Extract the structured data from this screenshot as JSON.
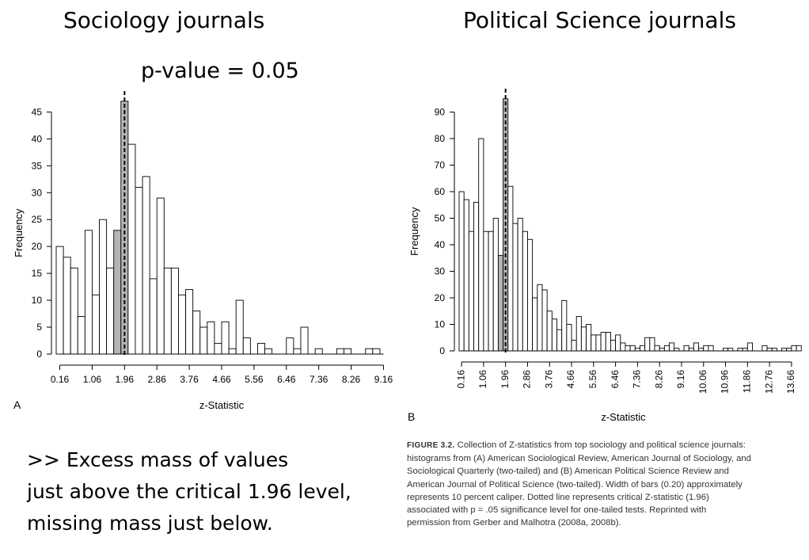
{
  "slide": {
    "left_title": "Sociology journals",
    "right_title": "Political Science journals",
    "pvalue_label": "p-value = 0.05",
    "note_lines": [
      ">> Excess mass of values",
      "just above the critical 1.96 level,",
      "missing mass just below."
    ]
  },
  "caption": {
    "label": "FIGURE 3.2.",
    "lines": [
      " Collection of Z-statistics from top sociology and political science journals:",
      "histograms from (A) American Sociological Review, American Journal of Sociology, and",
      "Sociological Quarterly (two-tailed) and (B) American Political Science Review and",
      "American Journal of Political Science (two-tailed). Width of bars (0.20) approximately",
      "represents 10 percent caliper. Dotted line represents critical Z-statistic (1.96)",
      "associated with p = .05 significance level for one-tailed tests. Reprinted with",
      "permission from Gerber and Malhotra (2008a, 2008b)."
    ]
  },
  "colors": {
    "bar_fill": "#ffffff",
    "highlight_fill": "#b4b4b4",
    "stroke": "#000000"
  },
  "chart_data": [
    {
      "type": "bar",
      "panel_label": "A",
      "xlabel": "z-Statistic",
      "ylabel": "Frequency",
      "bin_width": 0.2,
      "x_start": 0.16,
      "xlim": [
        0.06,
        9.26
      ],
      "ylim": [
        0,
        48
      ],
      "yticks": [
        0,
        5,
        10,
        15,
        20,
        25,
        30,
        35,
        40,
        45
      ],
      "xticks": [
        0.16,
        1.06,
        1.96,
        2.86,
        3.76,
        4.66,
        5.56,
        6.46,
        7.36,
        8.26,
        9.16
      ],
      "xtick_labels": [
        "0.16",
        "1.06",
        "1.96",
        "2.86",
        "3.76",
        "4.66",
        "5.56",
        "6.46",
        "7.36",
        "8.26",
        "9.16"
      ],
      "critical_value": 1.96,
      "highlight_bars": [
        8,
        9
      ],
      "values": [
        20,
        18,
        16,
        7,
        23,
        11,
        25,
        16,
        23,
        47,
        39,
        31,
        33,
        14,
        29,
        16,
        16,
        11,
        12,
        8,
        5,
        6,
        2,
        6,
        1,
        10,
        3,
        0,
        2,
        1,
        0,
        0,
        3,
        1,
        5,
        0,
        1,
        0,
        0,
        1,
        1,
        0,
        0,
        1,
        1
      ],
      "tick_rotation": 0
    },
    {
      "type": "bar",
      "panel_label": "B",
      "xlabel": "z-Statistic",
      "ylabel": "Frequency",
      "bin_width": 0.2,
      "x_start": 0.16,
      "xlim": [
        0.06,
        13.76
      ],
      "ylim": [
        0,
        97
      ],
      "yticks": [
        0,
        10,
        20,
        30,
        40,
        50,
        60,
        70,
        80,
        90
      ],
      "xticks": [
        0.16,
        1.06,
        1.96,
        2.86,
        3.76,
        4.66,
        5.56,
        6.46,
        7.36,
        8.26,
        9.16,
        10.06,
        10.96,
        11.86,
        12.76,
        13.66
      ],
      "xtick_labels": [
        "0.16",
        "1.06",
        "1.96",
        "2.86",
        "3.76",
        "4.66",
        "5.56",
        "6.46",
        "7.36",
        "8.26",
        "9.16",
        "10.06",
        "10.96",
        "11.86",
        "12.76",
        "13.66"
      ],
      "critical_value": 1.96,
      "highlight_bars": [
        8,
        9
      ],
      "values": [
        60,
        57,
        45,
        56,
        80,
        45,
        45,
        50,
        36,
        95,
        62,
        48,
        50,
        45,
        42,
        20,
        25,
        23,
        15,
        12,
        8,
        19,
        10,
        4,
        13,
        9,
        10,
        6,
        6,
        7,
        7,
        4,
        6,
        3,
        2,
        2,
        1,
        2,
        5,
        5,
        2,
        1,
        2,
        3,
        1,
        0,
        2,
        1,
        3,
        1,
        2,
        2,
        0,
        0,
        1,
        1,
        0,
        1,
        1,
        3,
        0,
        0,
        2,
        1,
        1,
        0,
        1,
        1,
        2,
        2
      ],
      "tick_rotation": -90
    }
  ]
}
